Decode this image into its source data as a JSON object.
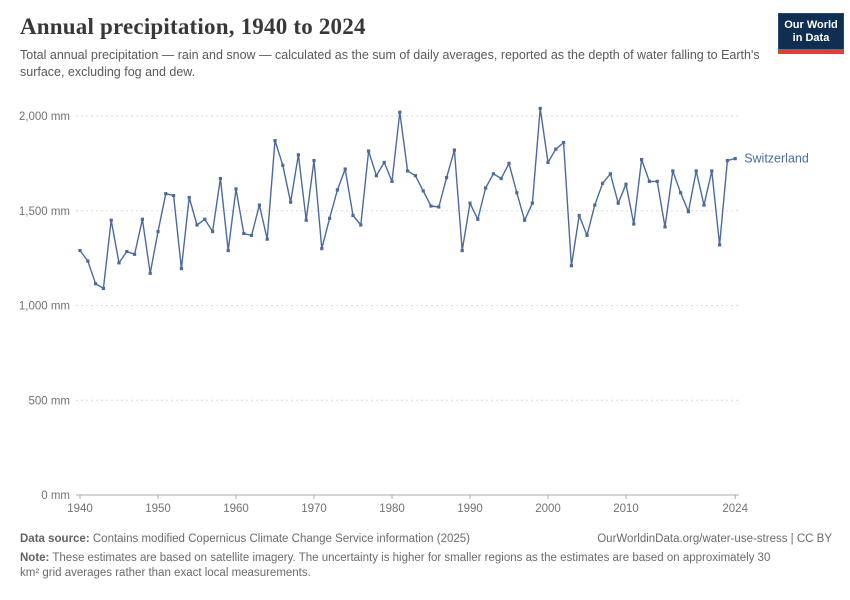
{
  "header": {
    "title": "Annual precipitation, 1940 to 2024",
    "subtitle": "Total annual precipitation — rain and snow — calculated as the sum of daily averages, reported as the depth of water falling to Earth's surface, excluding fog and dew."
  },
  "logo": {
    "line1": "Our World",
    "line2": "in Data"
  },
  "chart_data": {
    "type": "line",
    "title": "Annual precipitation, 1940 to 2024",
    "unit": "mm",
    "xlim": [
      1940,
      2024
    ],
    "ylim": [
      0,
      2000
    ],
    "grid": "horizontal-dashed",
    "legend_position": "end-of-line-label",
    "x_ticks": [
      1940,
      1950,
      1960,
      1970,
      1980,
      1990,
      2000,
      2010,
      2024
    ],
    "y_ticks": [
      {
        "value": 0,
        "label": "0 mm"
      },
      {
        "value": 500,
        "label": "500 mm"
      },
      {
        "value": 1000,
        "label": "1,000 mm"
      },
      {
        "value": 1500,
        "label": "1,500 mm"
      },
      {
        "value": 2000,
        "label": "2,000 mm"
      }
    ],
    "series": [
      {
        "name": "Switzerland",
        "color": "#4C6A9C",
        "x": [
          1940,
          1941,
          1942,
          1943,
          1944,
          1945,
          1946,
          1947,
          1948,
          1949,
          1950,
          1951,
          1952,
          1953,
          1954,
          1955,
          1956,
          1957,
          1958,
          1959,
          1960,
          1961,
          1962,
          1963,
          1964,
          1965,
          1966,
          1967,
          1968,
          1969,
          1970,
          1971,
          1972,
          1973,
          1974,
          1975,
          1976,
          1977,
          1978,
          1979,
          1980,
          1981,
          1982,
          1983,
          1984,
          1985,
          1986,
          1987,
          1988,
          1989,
          1990,
          1991,
          1992,
          1993,
          1994,
          1995,
          1996,
          1997,
          1998,
          1999,
          2000,
          2001,
          2002,
          2003,
          2004,
          2005,
          2006,
          2007,
          2008,
          2009,
          2010,
          2011,
          2012,
          2013,
          2014,
          2015,
          2016,
          2017,
          2018,
          2019,
          2020,
          2021,
          2022,
          2023,
          2024
        ],
        "values": [
          1290,
          1235,
          1115,
          1090,
          1450,
          1225,
          1285,
          1270,
          1455,
          1170,
          1390,
          1590,
          1580,
          1195,
          1570,
          1425,
          1455,
          1390,
          1670,
          1290,
          1615,
          1380,
          1370,
          1530,
          1350,
          1870,
          1740,
          1545,
          1795,
          1450,
          1765,
          1300,
          1460,
          1610,
          1720,
          1475,
          1425,
          1815,
          1685,
          1755,
          1655,
          2020,
          1710,
          1685,
          1605,
          1525,
          1520,
          1675,
          1820,
          1290,
          1540,
          1455,
          1620,
          1695,
          1670,
          1750,
          1595,
          1450,
          1540,
          2040,
          1755,
          1825,
          1860,
          1210,
          1475,
          1370,
          1530,
          1645,
          1695,
          1540,
          1640,
          1430,
          1770,
          1655,
          1655,
          1415,
          1710,
          1595,
          1495,
          1710,
          1530,
          1710,
          1320,
          1765,
          1775
        ]
      }
    ]
  },
  "footer": {
    "datasource_label": "Data source:",
    "datasource_text": " Contains modified Copernicus Climate Change Service information (2025)",
    "link_text": "OurWorldinData.org/water-use-stress | CC BY",
    "note_label": "Note:",
    "note_text": " These estimates are based on satellite imagery. The uncertainty is higher for smaller regions as the estimates are based on approximately 30 km² grid averages rather than exact local measurements."
  },
  "colors": {
    "line": "#4C6A9C",
    "gridline": "#dadada",
    "axis": "#a8a8a8",
    "tick_label": "#737373",
    "title": "#383838",
    "subtitle": "#595959",
    "footer": "#6b6b6b",
    "logo_bg": "#0e2e52",
    "logo_bar": "#e0402f"
  }
}
